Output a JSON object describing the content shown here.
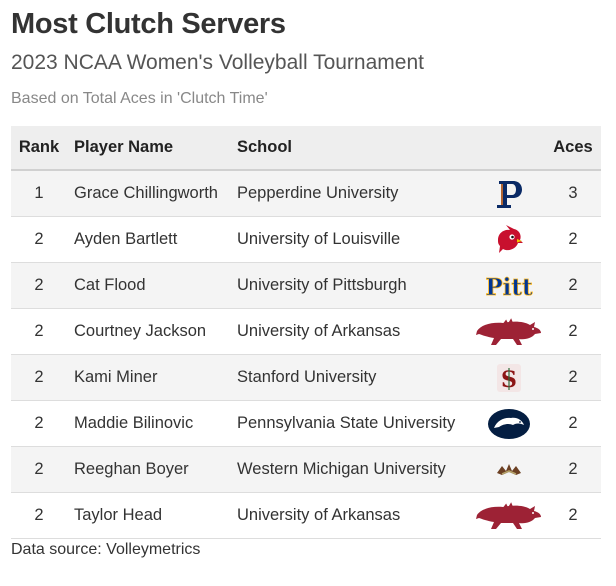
{
  "header": {
    "title": "Most Clutch Servers",
    "subtitle": "2023 NCAA Women's Volleyball Tournament",
    "caption": "Based on Total Aces in 'Clutch Time'"
  },
  "chart_data": {
    "type": "table",
    "columns": [
      "Rank",
      "Player Name",
      "School",
      "",
      "Aces"
    ],
    "rows": [
      {
        "rank": "1",
        "player": "Grace Chillingworth",
        "school": "Pepperdine University",
        "logo": "pepperdine-logo",
        "aces": 3
      },
      {
        "rank": "2",
        "player": "Ayden Bartlett",
        "school": "University of Louisville",
        "logo": "louisville-logo",
        "aces": 2
      },
      {
        "rank": "2",
        "player": "Cat Flood",
        "school": "University of Pittsburgh",
        "logo": "pitt-logo",
        "aces": 2
      },
      {
        "rank": "2",
        "player": "Courtney Jackson",
        "school": "University of Arkansas",
        "logo": "arkansas-logo",
        "aces": 2
      },
      {
        "rank": "2",
        "player": "Kami Miner",
        "school": "Stanford University",
        "logo": "stanford-logo",
        "aces": 2
      },
      {
        "rank": "2",
        "player": "Maddie Bilinovic",
        "school": "Pennsylvania State University",
        "logo": "penn-state-logo",
        "aces": 2
      },
      {
        "rank": "2",
        "player": "Reeghan Boyer",
        "school": "Western Michigan University",
        "logo": "western-michigan-logo",
        "aces": 2
      },
      {
        "rank": "2",
        "player": "Taylor Head",
        "school": "University of Arkansas",
        "logo": "arkansas-logo",
        "aces": 2
      }
    ]
  },
  "colors": {
    "pepperdine": "#0a2a66",
    "pepperdine_accent": "#e87722",
    "louisville": "#c8102e",
    "pitt": "#003594",
    "pitt_accent": "#ffb81c",
    "arkansas": "#9d2235",
    "stanford": "#8c1515",
    "penn_state": "#041e42",
    "western_michigan": "#6c4023",
    "western_michigan_accent": "#b5a36a"
  },
  "footer": {
    "source": "Data source: Volleymetrics"
  }
}
